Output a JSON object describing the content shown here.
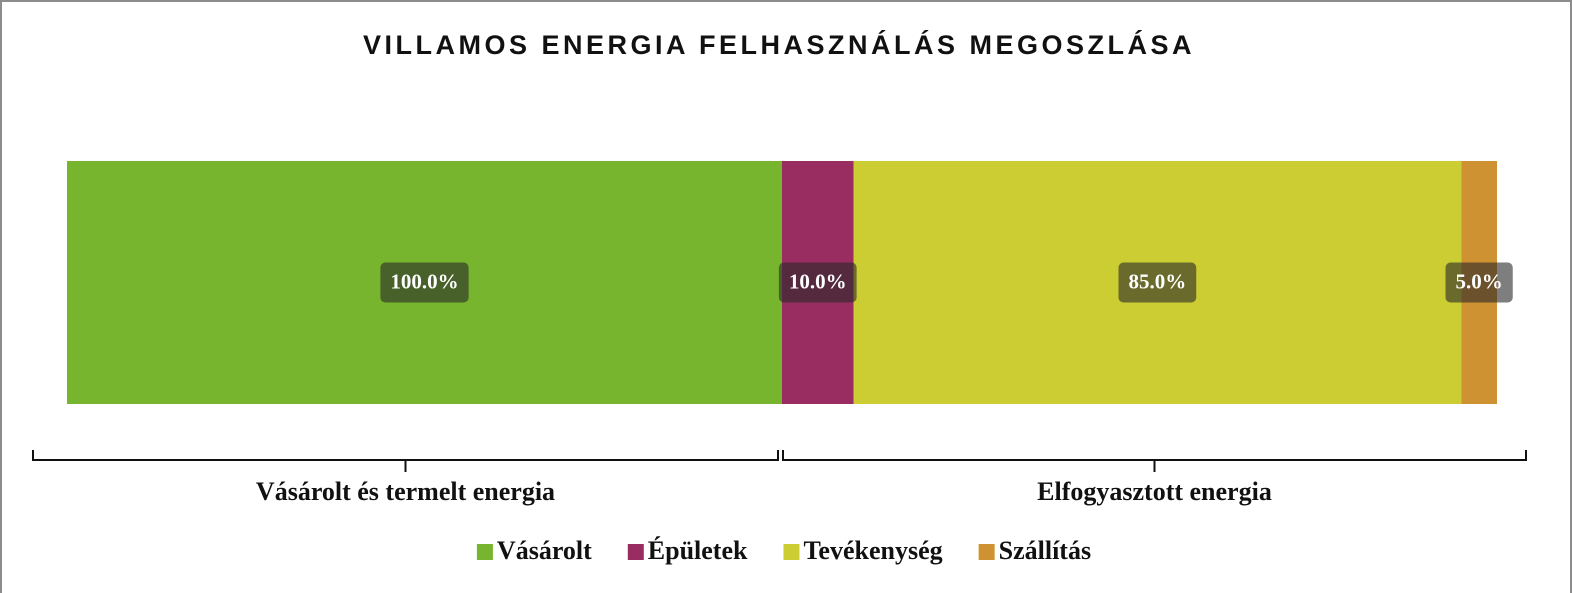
{
  "chart_data": {
    "type": "bar",
    "orientation": "horizontal",
    "stacked": true,
    "title": "VILLAMOS ENERGIA FELHASZNÁLÁS MEGOSZLÁSA",
    "categories": [
      null
    ],
    "xlim": [
      0,
      200
    ],
    "series": [
      {
        "name": "Vásárolt",
        "color": "#78b52f",
        "values": [
          100
        ],
        "value_labels": [
          "100.0%"
        ]
      },
      {
        "name": "Épületek",
        "color": "#992d62",
        "values": [
          10
        ],
        "value_labels": [
          "10.0%"
        ]
      },
      {
        "name": "Tevékenység",
        "color": "#cccd33",
        "values": [
          85
        ],
        "value_labels": [
          "85.0%"
        ]
      },
      {
        "name": "Szállítás",
        "color": "#cf9232",
        "values": [
          5
        ],
        "value_labels": [
          "5.0%"
        ]
      }
    ],
    "groups": [
      {
        "label": "Vásárolt és termelt energia"
      },
      {
        "label": "Elfogyasztott energia"
      }
    ],
    "legend": "bottom"
  }
}
